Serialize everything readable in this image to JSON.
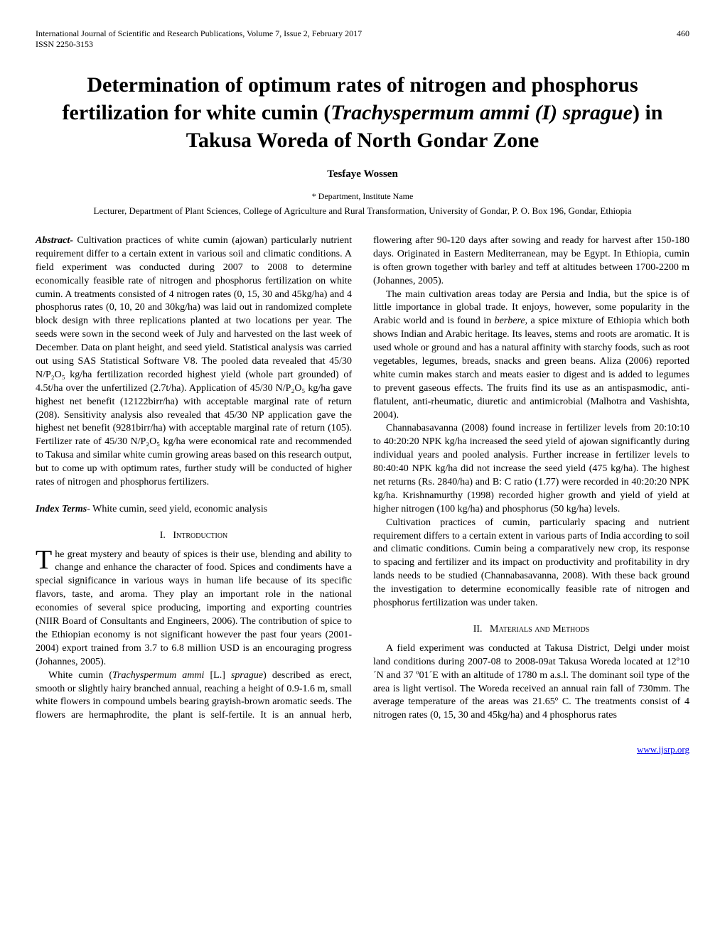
{
  "header": {
    "journal": "International Journal of Scientific and Research Publications, Volume 7, Issue 2, February 2017",
    "page_number": "460",
    "issn": "ISSN 2250-3153"
  },
  "title_parts": {
    "line1": "Determination of optimum rates of nitrogen and phosphorus fertilization for white cumin (",
    "italic": "Trachyspermum ammi (I) sprague",
    "line2": ") in Takusa Woreda of North Gondar Zone"
  },
  "author": "Tesfaye Wossen",
  "department": "* Department, Institute Name",
  "affiliation": "Lecturer, Department of Plant Sciences, College of Agriculture and Rural Transformation, University of Gondar, P. O. Box 196, Gondar, Ethiopia",
  "abstract": {
    "label": "Abstract-",
    "text": " Cultivation practices of white cumin (ajowan) particularly nutrient requirement differ to a certain extent in various soil and climatic conditions. A field experiment was conducted during 2007 to 2008 to determine economically feasible rate of nitrogen and phosphorus fertilization on white cumin. A treatments consisted of 4 nitrogen rates (0, 15, 30 and 45kg/ha) and 4 phosphorus rates (0, 10, 20 and 30kg/ha) was laid out in randomized complete block design with three replications planted at two locations per year. The seeds were sown in the second week of July and harvested on the last week of December. Data on plant height, and seed yield.  Statistical analysis was carried out using SAS Statistical Software V8. The pooled data revealed that 45/30 N/P₂O₅ kg/ha fertilization recorded highest yield (whole part grounded) of 4.5t/ha over the unfertilized (2.7t/ha). Application of 45/30 N/P₂O₅ kg/ha gave highest net benefit (12122birr/ha) with acceptable marginal rate of return (208). Sensitivity analysis also revealed that 45/30 NP application gave the highest net benefit (9281birr/ha) with acceptable marginal rate of return (105). Fertilizer rate of 45/30 N/P₂O₅ kg/ha were economical rate and recommended to Takusa and similar white cumin growing areas based on this research output, but to come up with optimum rates, further study will be conducted of higher rates of nitrogen and phosphorus fertilizers."
  },
  "index_terms": {
    "label": "Index Terms",
    "text": "- White cumin, seed yield, economic analysis"
  },
  "sections": {
    "intro": {
      "num": "I.",
      "title": "Introduction",
      "dropcap": "T",
      "first_para": "he great mystery and beauty of spices is their use, blending and ability to change and enhance the character of food. Spices and condiments have a special significance in various ways in human life because of its specific flavors, taste, and aroma. They play an important role in the national economies of several spice producing, importing and exporting countries (NIIR Board of Consultants and Engineers, 2006). The contribution of spice to the Ethiopian economy is not significant however the past four years (2001-2004) export trained from 3.7 to 6.8 million USD is an encouraging progress (Johannes, 2005).",
      "p2_pre": "White cumin (",
      "p2_ital1": "Trachyspermum ammi",
      "p2_mid": " [L.] ",
      "p2_ital2": "sprague",
      "p2_post": ") described as erect, smooth or slightly hairy branched annual, reaching a height of 0.9-1.6 m, small white flowers in compound umbels bearing grayish-brown aromatic seeds. The flowers are hermaphrodite, the plant is self-fertile. It is an annual herb, flowering after 90-120 days after sowing and ready for harvest after 150-180 days. Originated in Eastern Mediterranean, may be Egypt. In Ethiopia, cumin is often grown together with barley and teff at altitudes between 1700-2200 m (Johannes, 2005).",
      "p3_pre": "The main cultivation areas today are Persia and India, but the spice is of little importance in global trade. It enjoys, however, some popularity in the Arabic world and is found in ",
      "p3_ital": "berbere",
      "p3_post": ", a spice mixture of Ethiopia which both shows Indian and Arabic heritage. Its leaves, stems and roots are aromatic.  It is used whole or ground and has a natural affinity with starchy foods, such as root vegetables, legumes, breads, snacks and green beans. Aliza (2006) reported white cumin makes starch and meats easier to digest and is added to legumes to prevent gaseous effects. The fruits find its use as an antispasmodic, anti-flatulent, anti-rheumatic, diuretic and antimicrobial (Malhotra and Vashishta, 2004).",
      "p4": "Channabasavanna (2008) found increase in fertilizer levels from 20:10:10 to 40:20:20 NPK kg/ha increased the seed yield of ajowan significantly during individual years and pooled analysis. Further increase in fertilizer levels to 80:40:40 NPK kg/ha did not increase the seed yield (475 kg/ha). The highest net returns (Rs. 2840/ha) and B: C ratio (1.77) were recorded in 40:20:20 NPK kg/ha. Krishnamurthy (1998) recorded higher growth and yield of yield at higher nitrogen (100 kg/ha) and phosphorus (50 kg/ha) levels.",
      "p5": "Cultivation practices of cumin, particularly spacing and nutrient requirement differs to a certain extent in various parts of India according to soil and climatic conditions. Cumin being a comparatively new crop, its response to spacing and fertilizer and its impact on productivity and profitability in dry lands needs to be studied (Channabasavanna, 2008). With these back ground the investigation to determine economically feasible rate of nitrogen and phosphorus fertilization was under taken."
    },
    "methods": {
      "num": "II.",
      "title": "Materials and Methods",
      "p1": "A field experiment was conducted at Takusa District, Delgi under moist land conditions during 2007-08 to 2008-09at Takusa Woreda located at 12º10´N and 37 º01´E with an altitude of 1780 m a.s.l. The dominant soil type of the area is light vertisol. The Woreda received an annual rain fall of 730mm. The average temperature of the areas was 21.65º C.  The treatments consist of 4 nitrogen rates (0, 15, 30 and 45kg/ha) and 4 phosphorus rates"
    }
  },
  "footer_link": "www.ijsrp.org"
}
